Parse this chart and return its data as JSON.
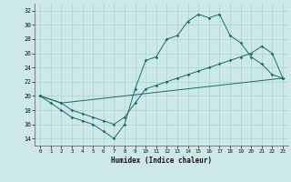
{
  "xlabel": "Humidex (Indice chaleur)",
  "xlim": [
    -0.5,
    23.5
  ],
  "ylim": [
    13,
    33
  ],
  "yticks": [
    14,
    16,
    18,
    20,
    22,
    24,
    26,
    28,
    30,
    32
  ],
  "xticks": [
    0,
    1,
    2,
    3,
    4,
    5,
    6,
    7,
    8,
    9,
    10,
    11,
    12,
    13,
    14,
    15,
    16,
    17,
    18,
    19,
    20,
    21,
    22,
    23
  ],
  "bg_color": "#cce8e8",
  "line_color": "#1a6b6b",
  "line1_x": [
    0,
    1,
    2,
    3,
    4,
    5,
    6,
    7,
    8,
    9,
    10,
    11,
    12,
    13,
    14,
    15,
    16,
    17,
    18,
    19,
    20,
    21,
    22,
    23
  ],
  "line1_y": [
    20,
    19,
    18,
    17,
    16.5,
    16,
    15,
    14,
    16,
    21,
    25,
    25.5,
    28,
    28.5,
    30.5,
    31.5,
    31,
    31.5,
    28.5,
    27.5,
    25.5,
    24.5,
    23,
    22.5
  ],
  "line2_x": [
    0,
    2,
    23
  ],
  "line2_y": [
    20,
    19,
    22.5
  ],
  "line3_x": [
    0,
    2,
    3,
    4,
    5,
    6,
    7,
    8,
    9,
    10,
    11,
    12,
    13,
    14,
    15,
    16,
    17,
    18,
    19,
    20,
    21,
    22,
    23
  ],
  "line3_y": [
    20,
    19,
    18,
    17.5,
    17,
    16.5,
    16,
    17,
    19,
    21,
    21.5,
    22,
    22.5,
    23,
    23.5,
    24,
    24.5,
    25,
    25.5,
    26,
    27,
    26,
    22.5
  ]
}
